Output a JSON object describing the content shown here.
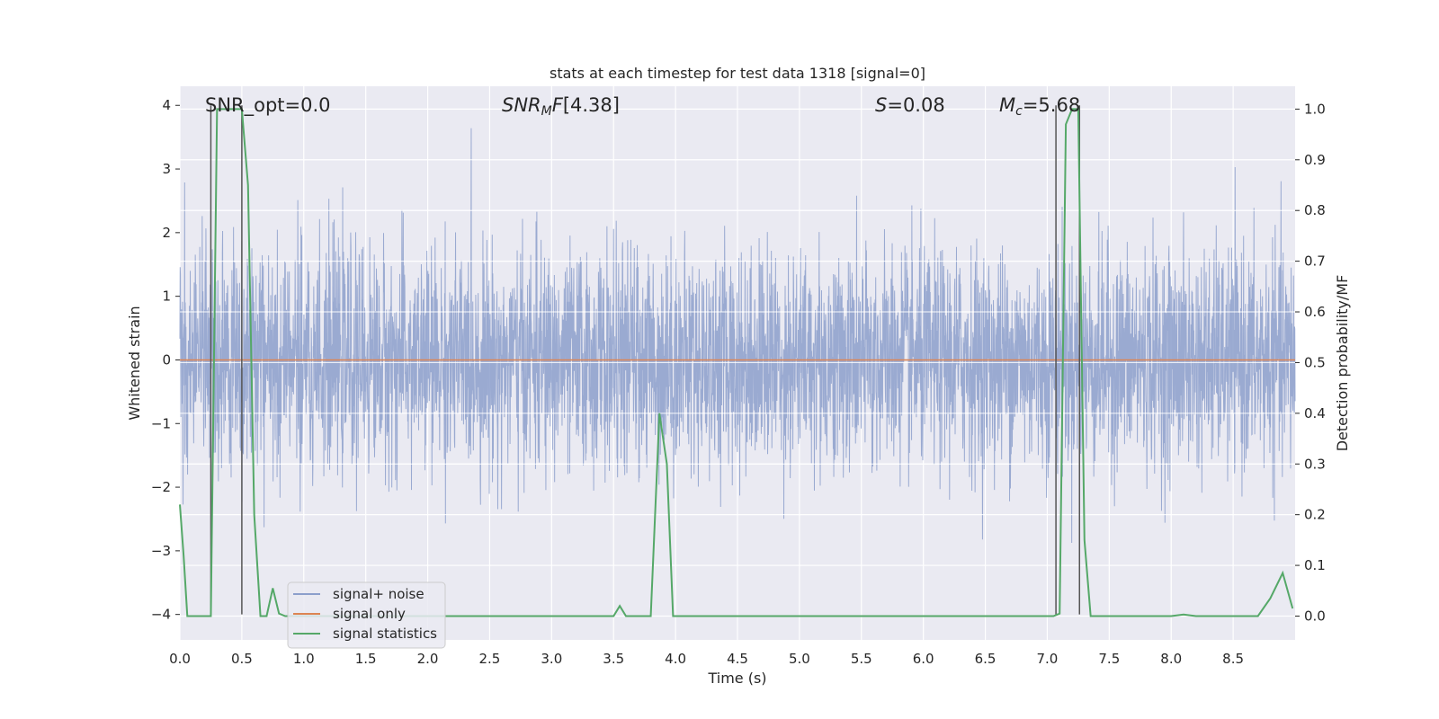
{
  "chart_data": {
    "type": "line",
    "title": "stats at each timestep for test data 1318 [signal=0]",
    "xlabel": "Time (s)",
    "ylabel": "Whitened strain",
    "y2label": "Detection probability/MF",
    "xlim": [
      0,
      9.0
    ],
    "ylim": [
      -4.4,
      4.3
    ],
    "y2lim": [
      -0.047,
      1.045
    ],
    "x_ticks": [
      "0.0",
      "0.5",
      "1.0",
      "1.5",
      "2.0",
      "2.5",
      "3.0",
      "3.5",
      "4.0",
      "4.5",
      "5.0",
      "5.5",
      "6.0",
      "6.5",
      "7.0",
      "7.5",
      "8.0",
      "8.5"
    ],
    "y_ticks": [
      "4",
      "3",
      "2",
      "1",
      "0",
      "−1",
      "−2",
      "−3",
      "−4"
    ],
    "y2_ticks": [
      "1.0",
      "0.9",
      "0.8",
      "0.7",
      "0.6",
      "0.5",
      "0.4",
      "0.3",
      "0.2",
      "0.1",
      "0.0"
    ],
    "grid": true,
    "legend_position": "lower-left",
    "annotations": {
      "snr_opt": "SNR_opt=0.0",
      "snr_mf": "[4.38]",
      "s_stat": "=0.08",
      "mc": "=5.68"
    },
    "vertical_lines_x": [
      0.25,
      0.5,
      7.07,
      7.26
    ],
    "series": [
      {
        "name": "signal+ noise",
        "color": "#8c9fcb",
        "description_axis": "left",
        "noise_amplitude_sigma": 0.85,
        "x_range": [
          0,
          9.0
        ]
      },
      {
        "name": "signal only",
        "color": "#dd8452",
        "axis": "left",
        "x": [
          0,
          9.0
        ],
        "y": [
          0,
          0
        ]
      },
      {
        "name": "signal statistics",
        "color": "#55a868",
        "axis": "right",
        "x": [
          0.0,
          0.03,
          0.06,
          0.25,
          0.3,
          0.5,
          0.55,
          0.6,
          0.65,
          0.7,
          0.75,
          0.8,
          0.85,
          3.5,
          3.55,
          3.6,
          3.7,
          3.8,
          3.87,
          3.93,
          3.98,
          4.0,
          4.2,
          7.0,
          7.05,
          7.1,
          7.15,
          7.2,
          7.25,
          7.3,
          7.35,
          7.4,
          7.5,
          8.0,
          8.1,
          8.2,
          8.5,
          8.7,
          8.8,
          8.9,
          8.98
        ],
        "y": [
          0.22,
          0.12,
          0.0,
          0.0,
          1.0,
          1.0,
          0.85,
          0.2,
          0.0,
          0.0,
          0.055,
          0.005,
          0.0,
          0.0,
          0.02,
          0.0,
          0.0,
          0.0,
          0.4,
          0.3,
          0.0,
          0.0,
          0.0,
          0.0,
          0.0,
          0.005,
          0.97,
          1.0,
          1.0,
          0.15,
          0.0,
          0.0,
          0.0,
          0.0,
          0.003,
          0.0,
          0.0,
          0.0,
          0.035,
          0.085,
          0.015
        ]
      }
    ]
  }
}
